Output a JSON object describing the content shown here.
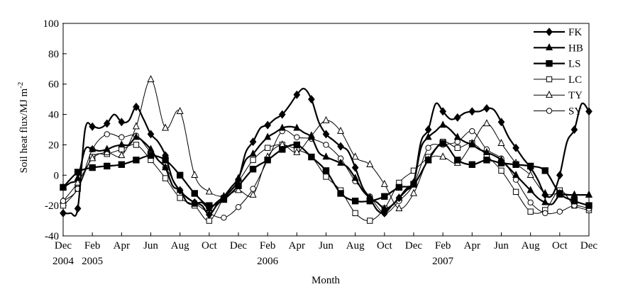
{
  "chart_data": {
    "type": "line",
    "title": "",
    "xlabel": "Month",
    "ylabel": "Soil heat flux/MJ m",
    "ylabel_sup": "-2",
    "ylim": [
      -40,
      100
    ],
    "yticks": [
      "-40",
      "-20",
      "0",
      "20",
      "40",
      "60",
      "80",
      "100"
    ],
    "xlim": [
      0,
      36
    ],
    "x_month_ticks": [
      "Dec",
      "Feb",
      "Apr",
      "Jun",
      "Aug",
      "Oct",
      "Dec",
      "Feb",
      "Apr",
      "Jun",
      "Aug",
      "Oct",
      "Dec",
      "Feb",
      "Apr",
      "Jun",
      "Aug",
      "Oct",
      "Dec"
    ],
    "x_year_labels": [
      {
        "x": 0,
        "label": "2004"
      },
      {
        "x": 2,
        "label": "2005"
      },
      {
        "x": 14,
        "label": "2006"
      },
      {
        "x": 26,
        "label": "2007"
      }
    ],
    "grid": false,
    "legend_position": "top-right",
    "series": [
      {
        "name": "FK",
        "marker": "diamond-filled",
        "width": 2.2,
        "x": [
          0,
          0.5,
          1,
          1.5,
          2,
          2.5,
          3,
          3.5,
          4,
          4.5,
          5,
          5.5,
          6,
          6.5,
          7,
          7.5,
          8,
          8.5,
          9,
          9.5,
          10,
          10.5,
          11,
          11.5,
          12,
          12.5,
          13,
          13.5,
          14,
          14.5,
          15,
          15.5,
          16,
          16.5,
          17,
          17.5,
          18,
          18.5,
          19,
          19.5,
          20,
          20.5,
          21,
          21.5,
          22,
          22.5,
          23,
          23.5,
          24,
          24.5,
          25,
          25.5,
          26,
          26.5,
          27,
          27.5,
          28,
          28.5,
          29,
          29.5,
          30,
          30.5,
          31,
          31.5,
          32,
          32.5,
          33,
          33.5,
          34,
          34.5,
          35,
          35.5,
          36
        ],
        "y": [
          -25,
          -25,
          -22,
          30,
          32,
          31,
          34,
          40,
          35,
          36,
          45,
          37,
          27,
          22,
          13,
          -3,
          -10,
          -15,
          -18,
          -20,
          -26,
          -20,
          -15,
          -10,
          -3,
          15,
          22,
          31,
          33,
          37,
          40,
          46,
          53,
          57,
          50,
          35,
          27,
          23,
          19,
          16,
          5,
          -8,
          -15,
          -23,
          -25,
          -20,
          -15,
          -9,
          -5,
          22,
          30,
          47,
          42,
          37,
          38,
          41,
          42,
          42,
          44,
          43,
          35,
          25,
          18,
          11,
          5,
          -3,
          -13,
          -13,
          0,
          22,
          30,
          47,
          42
        ],
        "x_plot": [
          0,
          0.5,
          1,
          1.5,
          2,
          2.5,
          3,
          3.5,
          4,
          4.5,
          5,
          5.5,
          6,
          6.5,
          7,
          7.5,
          8,
          8.5,
          9,
          9.5,
          10,
          10.5,
          11,
          11.5,
          12,
          12.5,
          13,
          13.5,
          14,
          14.5,
          15,
          15.5,
          16,
          16.5,
          17,
          17.5,
          18,
          18.5,
          19,
          19.5,
          20,
          20.5,
          21,
          21.5,
          22,
          22.5,
          23,
          23.5,
          24,
          24.5,
          25,
          25.5,
          26,
          26.5,
          27,
          27.5,
          28,
          28.5,
          29,
          29.5,
          30,
          30.5,
          31,
          31.5,
          32,
          32.5,
          33,
          33.5,
          34,
          34.5,
          35,
          35.5,
          36
        ],
        "note_markers_every": 1
      },
      {
        "name": "HB",
        "marker": "triangle-filled",
        "width": 2.2,
        "x": [
          0,
          0.5,
          1,
          1.5,
          2,
          2.5,
          3,
          3.5,
          4,
          4.5,
          5,
          5.5,
          6,
          6.5,
          7,
          7.5,
          8,
          8.5,
          9,
          9.5,
          10,
          10.5,
          11,
          11.5,
          12,
          12.5,
          13,
          13.5,
          14,
          14.5,
          15,
          15.5,
          16,
          16.5,
          17,
          17.5,
          18,
          18.5,
          19,
          19.5,
          20,
          20.5,
          21,
          21.5,
          22,
          22.5,
          23,
          23.5,
          24,
          24.5,
          25,
          25.5,
          26,
          26.5,
          27,
          27.5,
          28,
          28.5,
          29,
          29.5,
          30,
          30.5,
          31,
          31.5,
          32,
          32.5,
          33,
          33.5,
          34,
          34.5,
          35,
          35.5,
          36
        ],
        "y": [
          -8,
          -5,
          -2,
          17,
          17,
          16,
          17,
          19,
          20,
          20,
          25,
          22,
          17,
          10,
          5,
          -7,
          -10,
          -18,
          -19,
          -18,
          -22,
          -18,
          -14,
          -8,
          -2,
          10,
          14,
          20,
          25,
          28,
          31,
          32,
          31,
          28,
          25,
          15,
          12,
          10,
          8,
          5,
          -2,
          -10,
          -15,
          -18,
          -22,
          -20,
          -15,
          -10,
          -5,
          18,
          25,
          29,
          33,
          30,
          25,
          22,
          20,
          17,
          15,
          13,
          10,
          5,
          0,
          -5,
          -10,
          -15,
          -18,
          -19,
          -13,
          -13,
          -13,
          -13,
          -13
        ],
        "note_markers_every": 1
      },
      {
        "name": "LS",
        "marker": "square-filled",
        "width": 2.2,
        "x": [
          0,
          1,
          2,
          3,
          4,
          5,
          6,
          7,
          8,
          9,
          10,
          11,
          12,
          13,
          14,
          15,
          16,
          17,
          18,
          19,
          20,
          21,
          22,
          23,
          24,
          25,
          26,
          27,
          28,
          29,
          30,
          31,
          32,
          33,
          34,
          35,
          36
        ],
        "y": [
          -8,
          2,
          5,
          6,
          7,
          10,
          13,
          10,
          0,
          -12,
          -20,
          -16,
          -7,
          4,
          10,
          17,
          20,
          12,
          3,
          -12,
          -17,
          -17,
          -14,
          -8,
          -6,
          10,
          21,
          10,
          7,
          10,
          8,
          7,
          6,
          3,
          -12,
          -17,
          -20
        ]
      },
      {
        "name": "LC",
        "marker": "square-open",
        "width": 1,
        "x": [
          0,
          1,
          2,
          3,
          4,
          5,
          6,
          7,
          8,
          9,
          10,
          11,
          12,
          13,
          14,
          15,
          16,
          17,
          18,
          19,
          20,
          21,
          22,
          23,
          24,
          25,
          26,
          27,
          28,
          29,
          30,
          31,
          32,
          33,
          34,
          35,
          36
        ],
        "y": [
          -20,
          -9,
          12,
          14,
          17,
          20,
          10,
          -2,
          -15,
          -20,
          -30,
          -15,
          -4,
          10,
          18,
          20,
          17,
          12,
          -1,
          -10,
          -25,
          -30,
          -22,
          -5,
          3,
          12,
          22,
          18,
          21,
          13,
          3,
          -11,
          -24,
          -23,
          -10,
          -20,
          -23
        ]
      },
      {
        "name": "TY",
        "marker": "triangle-open",
        "width": 1,
        "x": [
          0,
          1,
          2,
          3,
          4,
          5,
          6,
          7,
          8,
          9,
          10,
          11,
          12,
          13,
          14,
          15,
          16,
          17,
          18,
          19,
          20,
          21,
          22,
          23,
          24,
          25,
          26,
          27,
          28,
          29,
          30,
          31,
          32,
          33,
          34,
          35,
          36
        ],
        "y": [
          -17,
          -5,
          11,
          15,
          13,
          32,
          63,
          31,
          42,
          0,
          -11,
          -14,
          -10,
          -13,
          12,
          20,
          15,
          26,
          36,
          29,
          12,
          7,
          -6,
          -22,
          -12,
          10,
          12,
          8,
          21,
          34,
          21,
          8,
          0,
          -12,
          -12,
          -13,
          -13
        ]
      },
      {
        "name": "SY",
        "marker": "circle-open",
        "width": 1,
        "x": [
          0,
          1,
          2,
          3,
          4,
          5,
          6,
          7,
          8,
          9,
          10,
          11,
          12,
          13,
          14,
          15,
          16,
          17,
          18,
          19,
          20,
          21,
          22,
          23,
          24,
          25,
          26,
          27,
          28,
          29,
          30,
          31,
          32,
          33,
          34,
          35,
          36
        ],
        "y": [
          -17,
          -9,
          17,
          27,
          25,
          26,
          15,
          5,
          -10,
          -18,
          -25,
          -28,
          -21,
          -9,
          10,
          29,
          25,
          24,
          20,
          11,
          -4,
          -14,
          -25,
          -17,
          -6,
          18,
          20,
          22,
          29,
          17,
          11,
          -3,
          -18,
          -25,
          -24,
          -20,
          -22
        ]
      }
    ]
  }
}
